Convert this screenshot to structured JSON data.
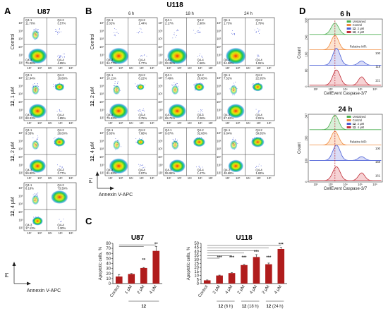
{
  "panel_letters": {
    "a": "A",
    "b": "B",
    "c": "C",
    "d": "D"
  },
  "panel_a": {
    "title": "U87",
    "row_labels": [
      {
        "bold": "",
        "rest": "Control"
      },
      {
        "bold": "12",
        "rest": ", 1 μM"
      },
      {
        "bold": "12",
        "rest": ", 2 μM"
      },
      {
        "bold": "12",
        "rest": ", 4 μM"
      }
    ],
    "ylabel": "PI",
    "xlabel": "Annexin V-APC",
    "plots": [
      {
        "q1": "11.70%",
        "q2": "3.57%",
        "q3": "79.88%",
        "q4": "4.85%"
      },
      {
        "q1": "12.94%",
        "q2": "16.88%",
        "q3": "68.33%",
        "q4": "1.85%"
      },
      {
        "q1": "9.33%",
        "q2": "28.00%",
        "q3": "59.90%",
        "q4": "2.77%"
      },
      {
        "q1": "8.18%",
        "q2": "73.39%",
        "q3": "17.13%",
        "q4": "1.30%"
      }
    ]
  },
  "panel_b": {
    "title": "U118",
    "col_labels": [
      "6 h",
      "18 h",
      "24 h"
    ],
    "row_labels": [
      {
        "bold": "",
        "rest": "Control"
      },
      {
        "bold": "12",
        "rest": ", 2 μM"
      },
      {
        "bold": "12",
        "rest": ", 4 μM"
      }
    ],
    "ylabel": "PI",
    "xlabel": "Annexin V-APC",
    "plots": [
      {
        "q1": "2.02%",
        "q2": "1.44%",
        "q3": "94.77%",
        "q4": "1.77%"
      },
      {
        "q1": "2.17%",
        "q2": "2.90%",
        "q3": "93.36%",
        "q4": "1.56%"
      },
      {
        "q1": "1.73%",
        "q2": "1.79%",
        "q3": "94.58%",
        "q4": "1.91%"
      },
      {
        "q1": "10.11%",
        "q2": "6.22%",
        "q3": "79.92%",
        "q4": "3.75%"
      },
      {
        "q1": "7.49%",
        "q2": "20.60%",
        "q3": "69.75%",
        "q4": "2.26%"
      },
      {
        "q1": "7.52%",
        "q2": "22.95%",
        "q3": "67.52%",
        "q4": "2.01%"
      },
      {
        "q1": "5.83%",
        "q2": "7.68%",
        "q3": "81.52%",
        "q4": "2.97%"
      },
      {
        "q1": "9.67%",
        "q2": "32.68%",
        "q3": "55.98%",
        "q4": "1.47%"
      },
      {
        "q1": "9.84%",
        "q2": "39.85%",
        "q3": "48.68%",
        "q4": "1.63%"
      }
    ]
  },
  "quadrant_labels": {
    "q1": "Q4-1",
    "q2": "Q4-2",
    "q3": "Q4-3",
    "q4": "Q4-4"
  },
  "axis_ticks": {
    "x": [
      "10²",
      "10³",
      "10⁴",
      "10⁵",
      "10⁶"
    ],
    "y": [
      "10²",
      "10³",
      "10⁴",
      "10⁵",
      "10⁶",
      "10⁷"
    ]
  },
  "chart_data": [
    {
      "type": "bar",
      "title": "U87",
      "ylabel": "Apoptotic cells, %",
      "ylim": [
        0,
        80
      ],
      "yticks": [
        0,
        10,
        20,
        30,
        40,
        50,
        60,
        70,
        80
      ],
      "categories": [
        "Control",
        "1 μM",
        "2 μM",
        "4 μM"
      ],
      "group_label": "12",
      "values": [
        14,
        19,
        31,
        65
      ],
      "errors": [
        4,
        1,
        1,
        9
      ],
      "significance": [
        "**",
        "**"
      ],
      "color": "#b01c1c"
    },
    {
      "type": "bar",
      "title": "U118",
      "ylabel": "Apoptotic cells, %",
      "ylim": [
        0,
        50
      ],
      "yticks": [
        0,
        5,
        10,
        15,
        20,
        25,
        30,
        35,
        40,
        45,
        50
      ],
      "categories": [
        "Control",
        "2 μM",
        "4 μM",
        "2 μM",
        "4 μM",
        "2 μM",
        "4 μM"
      ],
      "groups": [
        {
          "bold": "12",
          "rest": " (6 h)"
        },
        {
          "bold": "12",
          "rest": " (18 h)"
        },
        {
          "bold": "12",
          "rest": " (24 h)"
        }
      ],
      "values": [
        4,
        10,
        13,
        23,
        33,
        24,
        43
      ],
      "errors": [
        0.5,
        0.5,
        0.6,
        1,
        3,
        1.5,
        2
      ],
      "significance": [
        "***",
        "***",
        "***",
        "***",
        "***",
        "***"
      ],
      "color": "#b01c1c"
    },
    {
      "type": "histogram",
      "title": "6 h",
      "xlabel": "CellEvent Caspase-3/7",
      "ylabel": "Count",
      "yticks": [
        "0",
        "80",
        "160",
        "240",
        "328"
      ],
      "xticks": [
        "10²",
        "10³",
        "10⁴",
        "10⁵",
        "10⁶"
      ],
      "legend": [
        {
          "bold": "",
          "rest": "Unstained",
          "color": "#4caf50"
        },
        {
          "bold": "",
          "rest": "Control",
          "color": "#f08a3c"
        },
        {
          "bold": "12",
          "rest": ", 2 μM",
          "color": "#4a5fd6"
        },
        {
          "bold": "12",
          "rest": ", 4 μM",
          "color": "#c0303a"
        }
      ],
      "mfi_title": "Relative MFI:",
      "mfi_values": [
        "100",
        "118",
        "121"
      ]
    },
    {
      "type": "histogram",
      "title": "24 h",
      "xlabel": "CellEvent Caspase-3/7",
      "ylabel": "Count",
      "yticks": [
        "0",
        "100",
        "200",
        "347"
      ],
      "xticks": [
        "10²",
        "10³",
        "10⁴",
        "10⁵",
        "10⁶"
      ],
      "legend": [
        {
          "bold": "",
          "rest": "Unstained",
          "color": "#4caf50"
        },
        {
          "bold": "",
          "rest": "Control",
          "color": "#f08a3c"
        },
        {
          "bold": "12",
          "rest": ", 2 μM",
          "color": "#4a5fd6"
        },
        {
          "bold": "12",
          "rest": ", 4 μM",
          "color": "#c0303a"
        }
      ],
      "mfi_title": "Relative MFI:",
      "mfi_values": [
        "100",
        "158",
        "161"
      ]
    }
  ]
}
